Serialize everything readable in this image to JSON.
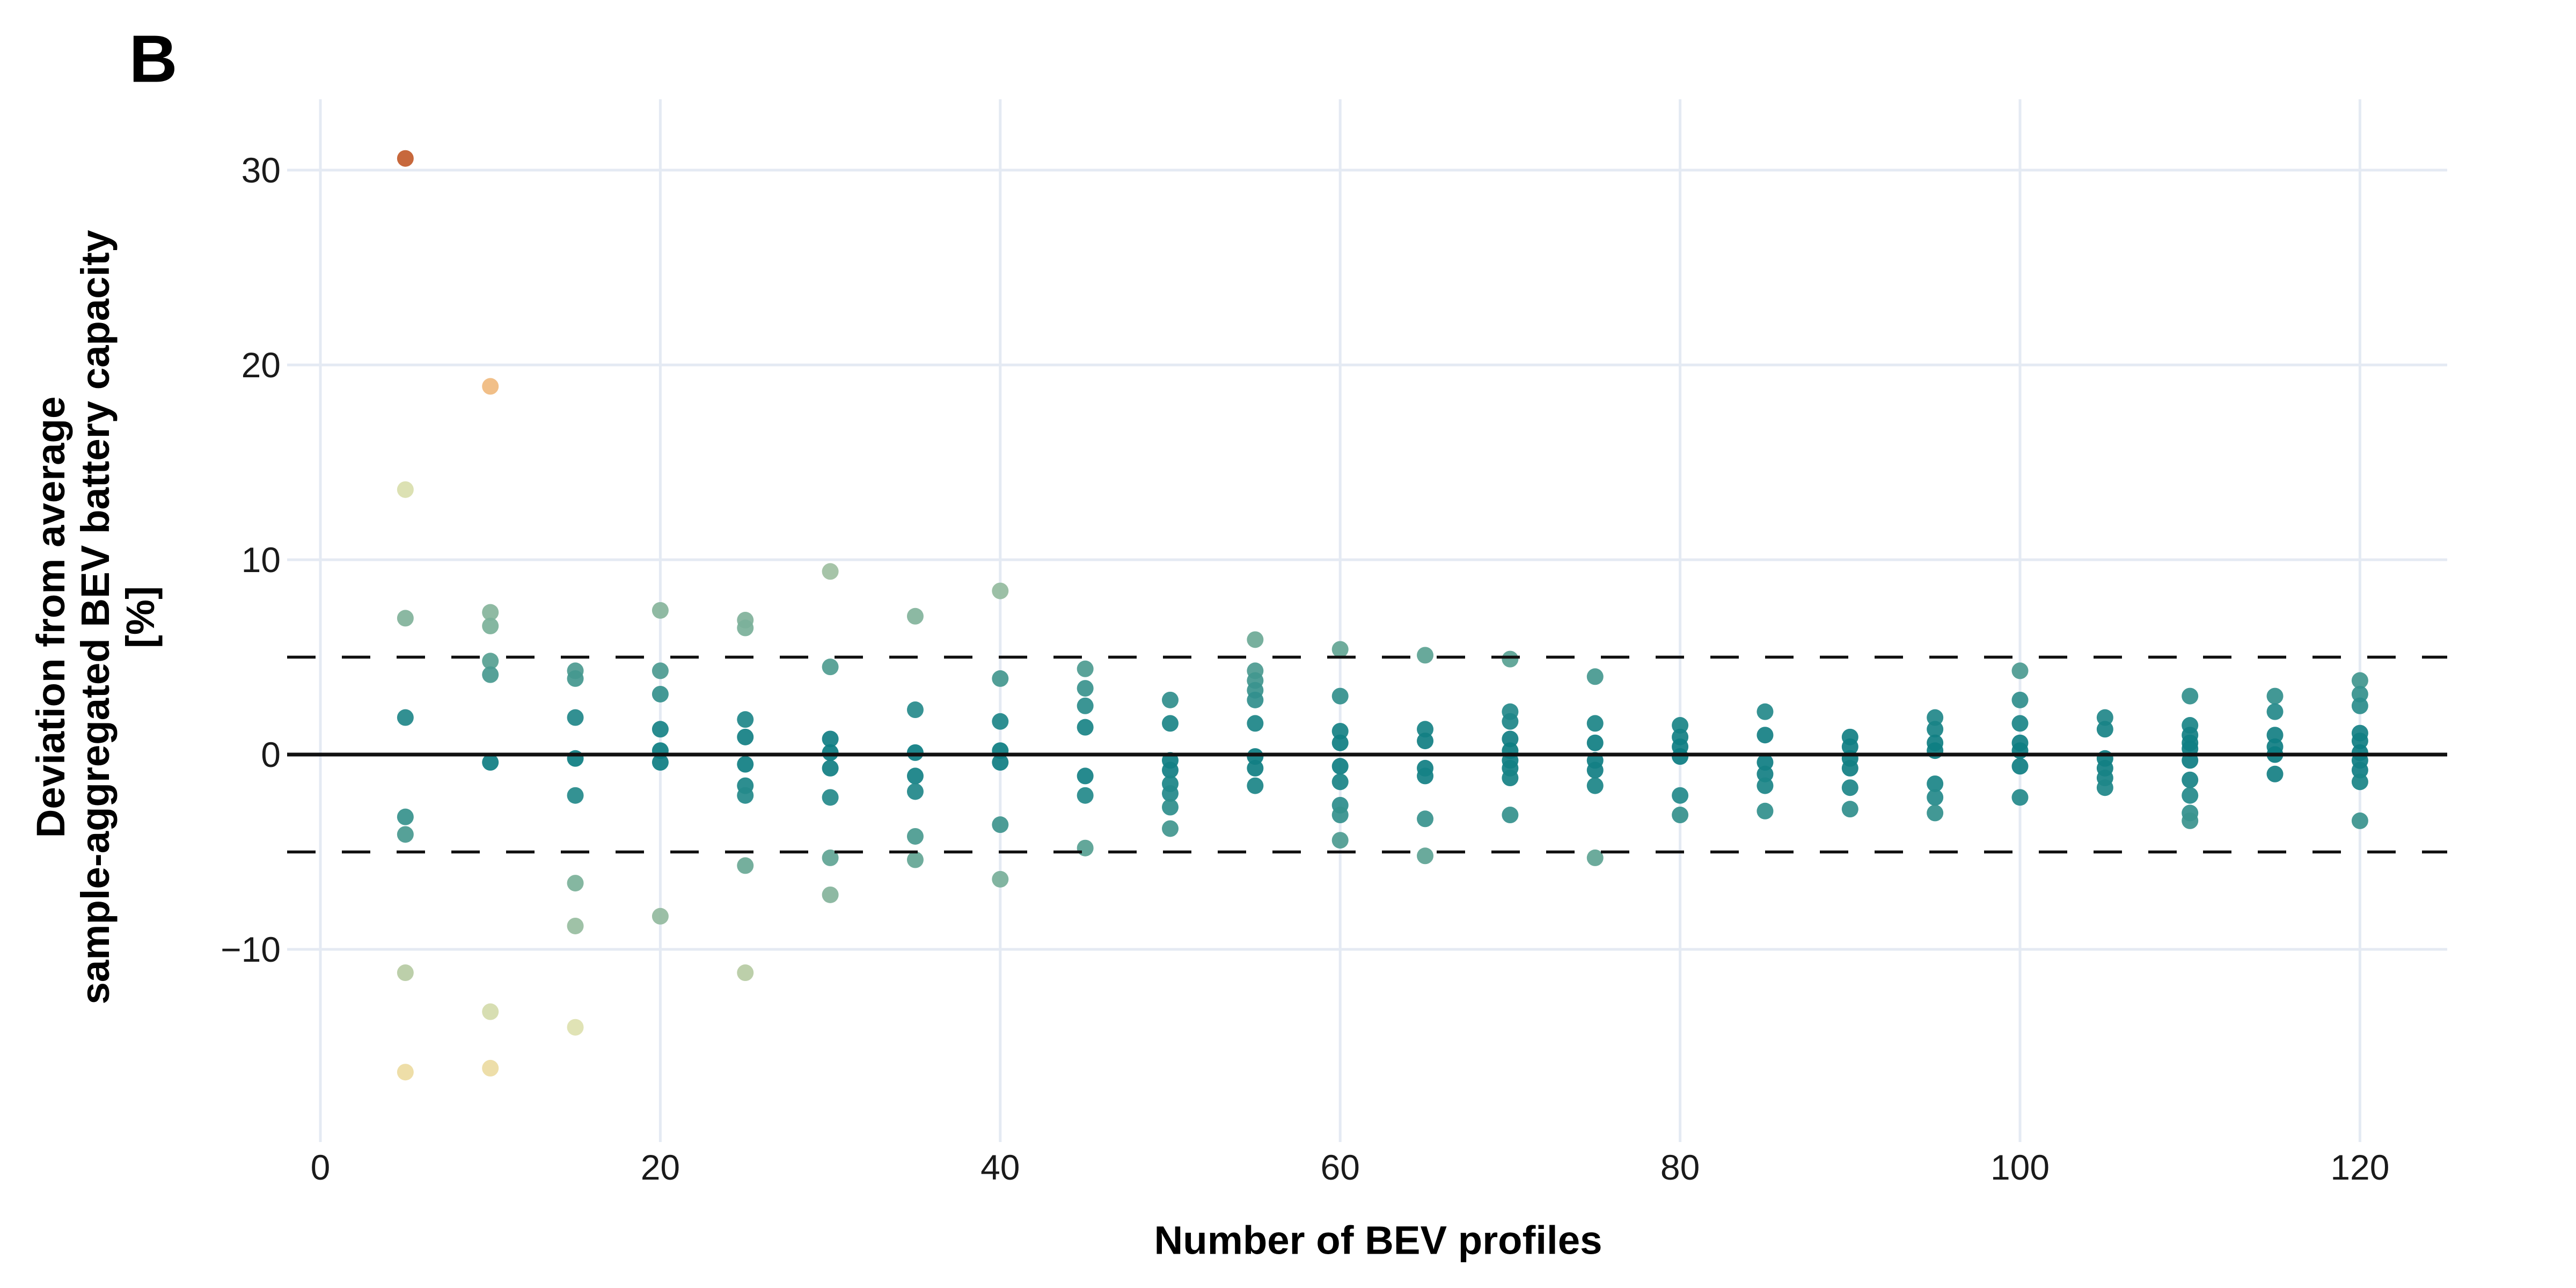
{
  "panel_label": "B",
  "axes": {
    "x": {
      "title": "Number of BEV profiles",
      "ticks": [
        {
          "value": 0,
          "label": "0"
        },
        {
          "value": 20,
          "label": "20"
        },
        {
          "value": 40,
          "label": "40"
        },
        {
          "value": 60,
          "label": "60"
        },
        {
          "value": 80,
          "label": "80"
        },
        {
          "value": 100,
          "label": "100"
        },
        {
          "value": 120,
          "label": "120"
        }
      ]
    },
    "y": {
      "title_lines": {
        "0": "Deviation from average",
        "1": "sample-aggregated BEV battery capacity",
        "2": "[%]"
      },
      "ticks": [
        {
          "value": 30,
          "label": "30"
        },
        {
          "value": 20,
          "label": "20"
        },
        {
          "value": 10,
          "label": "10"
        },
        {
          "value": 0,
          "label": "0"
        },
        {
          "value": -10,
          "label": "−10"
        }
      ]
    }
  },
  "reference_lines": {
    "solid_y": 0,
    "dashed_y": [
      5,
      -5
    ]
  },
  "chart_data": {
    "type": "scatter",
    "title": "B",
    "xlabel": "Number of BEV profiles",
    "ylabel": "Deviation from average sample-aggregated BEV battery capacity [%]",
    "xlim": [
      -2,
      125
    ],
    "ylim": [
      -19.8,
      33.5
    ],
    "grid": "major-only",
    "legend": "none",
    "color_encoding": "absolute deviation magnitude (teal = small, yellow/cream = medium, orange/red = large)",
    "series": [
      {
        "x": 5,
        "values": [
          30.6,
          13.6,
          7.0,
          1.9,
          -3.2,
          -4.1,
          -11.2,
          -16.3
        ]
      },
      {
        "x": 10,
        "values": [
          18.9,
          7.3,
          6.6,
          4.8,
          4.1,
          -0.4,
          -13.2,
          -16.1
        ]
      },
      {
        "x": 15,
        "values": [
          4.3,
          3.9,
          1.9,
          -0.2,
          -2.1,
          -6.6,
          -8.8,
          -14.0
        ]
      },
      {
        "x": 20,
        "values": [
          7.4,
          4.3,
          3.1,
          1.3,
          0.2,
          -0.4,
          -8.3
        ]
      },
      {
        "x": 25,
        "values": [
          6.9,
          6.5,
          1.8,
          0.9,
          -0.5,
          -1.6,
          -2.1,
          -5.7,
          -11.2
        ]
      },
      {
        "x": 30,
        "values": [
          9.4,
          4.5,
          0.8,
          0.1,
          -0.7,
          -2.2,
          -5.3,
          -7.2
        ]
      },
      {
        "x": 35,
        "values": [
          7.1,
          2.3,
          0.1,
          -1.1,
          -1.9,
          -4.2,
          -5.4
        ]
      },
      {
        "x": 40,
        "values": [
          8.4,
          3.9,
          1.7,
          0.2,
          -0.4,
          -3.6,
          -6.4
        ]
      },
      {
        "x": 45,
        "values": [
          4.4,
          3.4,
          2.5,
          1.4,
          -1.1,
          -2.1,
          -4.8
        ]
      },
      {
        "x": 50,
        "values": [
          2.8,
          1.6,
          -0.3,
          -0.8,
          -1.5,
          -2.0,
          -2.7,
          -3.8
        ]
      },
      {
        "x": 55,
        "values": [
          5.9,
          4.3,
          3.8,
          3.3,
          2.8,
          1.6,
          -0.1,
          -0.7,
          -1.6
        ]
      },
      {
        "x": 60,
        "values": [
          5.4,
          3.0,
          1.2,
          0.6,
          -0.6,
          -1.4,
          -2.6,
          -3.1,
          -4.4
        ]
      },
      {
        "x": 65,
        "values": [
          5.1,
          1.3,
          0.7,
          -0.7,
          -1.1,
          -3.3,
          -5.2
        ]
      },
      {
        "x": 70,
        "values": [
          4.9,
          2.2,
          1.7,
          0.8,
          0.2,
          -0.3,
          -0.7,
          -1.2,
          -3.1
        ]
      },
      {
        "x": 75,
        "values": [
          4.0,
          1.6,
          0.6,
          -0.3,
          -0.8,
          -1.6,
          -5.3
        ]
      },
      {
        "x": 80,
        "values": [
          1.5,
          0.9,
          0.4,
          -0.1,
          -2.1,
          -3.1
        ]
      },
      {
        "x": 85,
        "values": [
          2.2,
          1.0,
          -0.4,
          -1.0,
          -1.6,
          -2.9
        ]
      },
      {
        "x": 90,
        "values": [
          0.9,
          0.4,
          -0.2,
          -0.7,
          -1.7,
          -2.8
        ]
      },
      {
        "x": 95,
        "values": [
          1.9,
          1.3,
          0.6,
          0.2,
          -1.5,
          -2.2,
          -3.0
        ]
      },
      {
        "x": 100,
        "values": [
          4.3,
          2.8,
          1.6,
          0.6,
          0.2,
          -0.6,
          -2.2
        ]
      },
      {
        "x": 105,
        "values": [
          1.9,
          1.3,
          -0.2,
          -0.7,
          -1.2,
          -1.7
        ]
      },
      {
        "x": 110,
        "values": [
          3.0,
          1.5,
          1.0,
          0.6,
          0.3,
          -0.3,
          -1.3,
          -2.1,
          -3.0,
          -3.4
        ]
      },
      {
        "x": 115,
        "values": [
          3.0,
          2.2,
          1.0,
          0.4,
          0.0,
          -1.0
        ]
      },
      {
        "x": 120,
        "values": [
          3.8,
          3.1,
          2.5,
          1.1,
          0.7,
          0.1,
          -0.3,
          -0.8,
          -1.4,
          -3.4
        ]
      }
    ]
  },
  "style": {
    "background": "#ffffff",
    "gridline_color": "#e4eaf3",
    "line_color": "#111111",
    "text_color": "#1a1a1a",
    "color_stops": [
      [
        0,
        "#0c7d82"
      ],
      [
        1,
        "#158084"
      ],
      [
        2,
        "#23898b"
      ],
      [
        3.5,
        "#3d948e"
      ],
      [
        5,
        "#5ba293"
      ],
      [
        6.5,
        "#7bb09a"
      ],
      [
        8,
        "#90b99e"
      ],
      [
        10,
        "#a5c2a2"
      ],
      [
        11.5,
        "#bccda5"
      ],
      [
        13.5,
        "#d8dead"
      ],
      [
        14.5,
        "#e4e4b0"
      ],
      [
        16.5,
        "#eeda9f"
      ],
      [
        19,
        "#f0b97e"
      ],
      [
        25,
        "#d9854b"
      ],
      [
        31,
        "#c1592b"
      ]
    ]
  }
}
